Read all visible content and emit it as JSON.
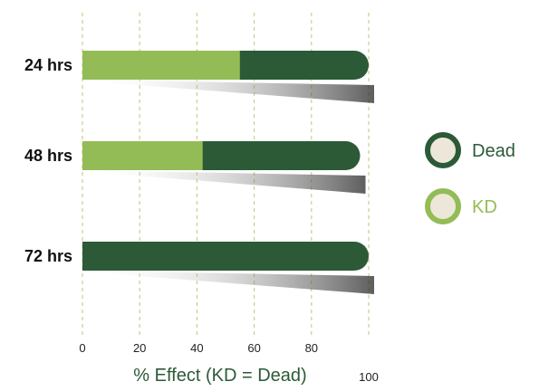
{
  "chart_data": {
    "type": "bar",
    "orientation": "horizontal",
    "stacked": true,
    "categories": [
      "24 hrs",
      "48 hrs",
      "72 hrs"
    ],
    "series": [
      {
        "name": "KD",
        "values": [
          55,
          42,
          0
        ],
        "color": "#94bc56"
      },
      {
        "name": "Dead",
        "values": [
          45,
          55,
          100
        ],
        "color": "#2c5a37"
      }
    ],
    "xlabel": "% Effect (KD = Dead)",
    "xticks": [
      0,
      20,
      40,
      60,
      80,
      100
    ],
    "xlim": [
      0,
      100
    ],
    "grid": "vertical-dashed",
    "legend": "right",
    "colors": {
      "grid": "#c8cf8d",
      "xlabel": "#2c5a37",
      "legend_fill": "#ede7d9",
      "shadow": "#555555"
    }
  }
}
